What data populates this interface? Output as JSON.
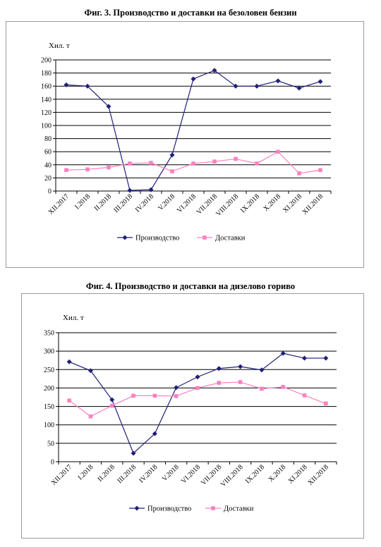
{
  "figures": [
    {
      "title": "Фиг. 3. Производство и доставки на безоловен бензин",
      "chart_data": {
        "type": "line",
        "ylabel": "Хил. т",
        "ylim": [
          0,
          200
        ],
        "yticks": [
          0,
          20,
          40,
          60,
          80,
          100,
          120,
          140,
          160,
          180,
          200
        ],
        "grid": true,
        "legend_position": "bottom",
        "categories": [
          "XII.2017",
          "I.2018",
          "II.2018",
          "III.2018",
          "IV.2018",
          "V.2018",
          "VI.2018",
          "VII.2018",
          "VIII.2018",
          "IX.2018",
          "X.2018",
          "XI.2018",
          "XII.2018"
        ],
        "series": [
          {
            "name": "Производство",
            "color": "#1f1f7a",
            "marker": "diamond",
            "values": [
              162,
              160,
              129,
              1,
              2,
              55,
              171,
              184,
              160,
              160,
              168,
              157,
              167
            ]
          },
          {
            "name": "Доставки",
            "color": "#ff80c0",
            "marker": "square",
            "values": [
              32,
              33,
              36,
              42,
              43,
              30,
              42,
              45,
              49,
              42,
              60,
              27,
              32
            ]
          }
        ]
      }
    },
    {
      "title": "Фиг. 4. Производство и доставки на дизелово гориво",
      "chart_data": {
        "type": "line",
        "ylabel": "Хил. т",
        "ylim": [
          0,
          350
        ],
        "yticks": [
          0,
          50,
          100,
          150,
          200,
          250,
          300,
          350
        ],
        "grid": true,
        "legend_position": "bottom",
        "categories": [
          "XII.2017",
          "I.2018",
          "II.2018",
          "III.2018",
          "IV.2018",
          "V.2018",
          "VI.2018",
          "VII.2018",
          "VIII.2018",
          "IX.2018",
          "X.2018",
          "XI.2018",
          "XII.2018"
        ],
        "series": [
          {
            "name": "Производство",
            "color": "#1f1f7a",
            "marker": "diamond",
            "values": [
              271,
              247,
              168,
              23,
              76,
              201,
              230,
              253,
              258,
              249,
              294,
              281,
              281
            ]
          },
          {
            "name": "Доставки",
            "color": "#ff80c0",
            "marker": "square",
            "values": [
              166,
              123,
              152,
              179,
              179,
              178,
              200,
              214,
              216,
              198,
              203,
              180,
              158
            ]
          }
        ]
      }
    }
  ]
}
